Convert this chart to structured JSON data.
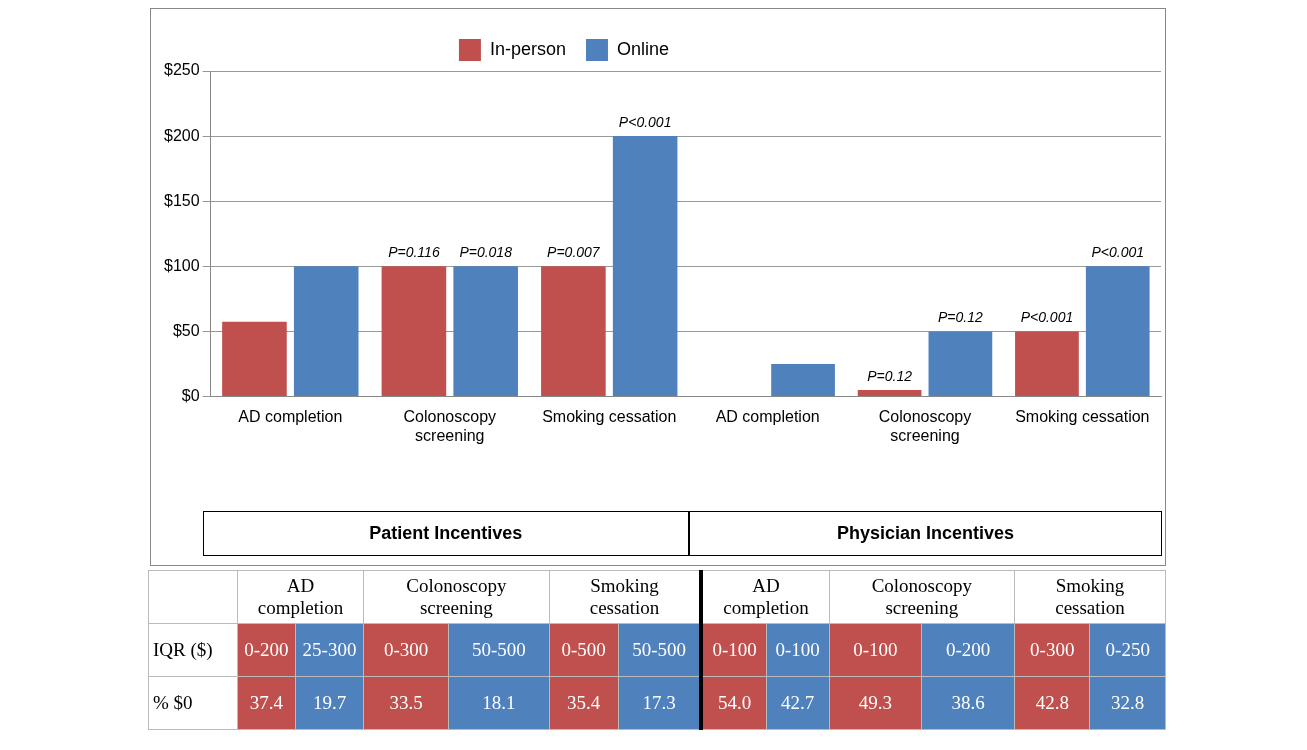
{
  "chart_data": [
    {
      "type": "bar",
      "categories": [
        "AD completion",
        "Colonoscopy screening",
        "Smoking cessation"
      ],
      "series": [
        {
          "name": "In-person",
          "color": "#c0504d",
          "values": [
            57.5,
            100,
            100
          ]
        },
        {
          "name": "Online",
          "color": "#4f81bd",
          "values": [
            100,
            100,
            200
          ]
        }
      ],
      "ylim": [
        0,
        250
      ],
      "yticks": [
        {
          "value": 0,
          "label": "$0"
        },
        {
          "value": 50,
          "label": "$50"
        },
        {
          "value": 100,
          "label": "$100"
        },
        {
          "value": 150,
          "label": "$150"
        },
        {
          "value": 200,
          "label": "$200"
        },
        {
          "value": 250,
          "label": "$250"
        }
      ],
      "grid": "y",
      "legend": "top",
      "annotations": [
        "Patient Incentives",
        {
          "text": "P=0.116",
          "x": "Colonoscopy screening",
          "y": 100
        },
        {
          "text": "P=0.018",
          "x": "Colonoscopy screening",
          "y": 100
        },
        {
          "text": "P=0.007",
          "x": "Smoking cessation",
          "y": 100
        },
        {
          "text": "P<0.001",
          "x": "Smoking cessation",
          "y": 200
        }
      ]
    },
    {
      "type": "bar",
      "categories": [
        "AD completion",
        "Colonoscopy screening",
        "Smoking cessation"
      ],
      "series": [
        {
          "color": "#c0504d",
          "values": [
            0,
            5,
            50
          ]
        },
        {
          "color": "#4f81bd",
          "values": [
            25,
            50,
            100
          ]
        }
      ],
      "ylim": [
        0,
        250
      ],
      "yticks": [
        {
          "value": 0,
          "label": "$0"
        },
        {
          "value": 50,
          "label": "$50"
        },
        {
          "value": 100,
          "label": "$100"
        },
        {
          "value": 150,
          "label": "$150"
        },
        {
          "value": 200,
          "label": "$200"
        },
        {
          "value": 250,
          "label": "$250"
        }
      ],
      "grid": "y",
      "tick_labels": "x",
      "annotations": [
        "Physician Incentives",
        {
          "text": "P=0.12",
          "x": "Colonoscopy screening",
          "y": 5
        },
        {
          "text": "P=0.12",
          "x": "Colonoscopy screening",
          "y": 50
        },
        {
          "text": "P<0.001",
          "x": "Smoking cessation",
          "y": 50
        },
        {
          "text": "P<0.001",
          "x": "Smoking cessation",
          "y": 100
        }
      ]
    },
    {
      "type": "other",
      "annotations": [
        "AD completion",
        "Colonoscopy screening",
        "Smoking cessation",
        "AD completion",
        "Colonoscopy screening",
        "Smoking cessation",
        "IQR ($)",
        "0-200",
        "25-300",
        "0-300",
        "50-500",
        "0-500",
        "50-500",
        "0-100",
        "0-100",
        "0-100",
        "0-200",
        "0-300",
        "0-250",
        "% $0",
        "37.4",
        "19.7",
        "33.5",
        "18.1",
        "35.4",
        "17.3",
        "54.0",
        "42.7",
        "49.3",
        "38.6",
        "42.8",
        "32.8"
      ]
    }
  ]
}
